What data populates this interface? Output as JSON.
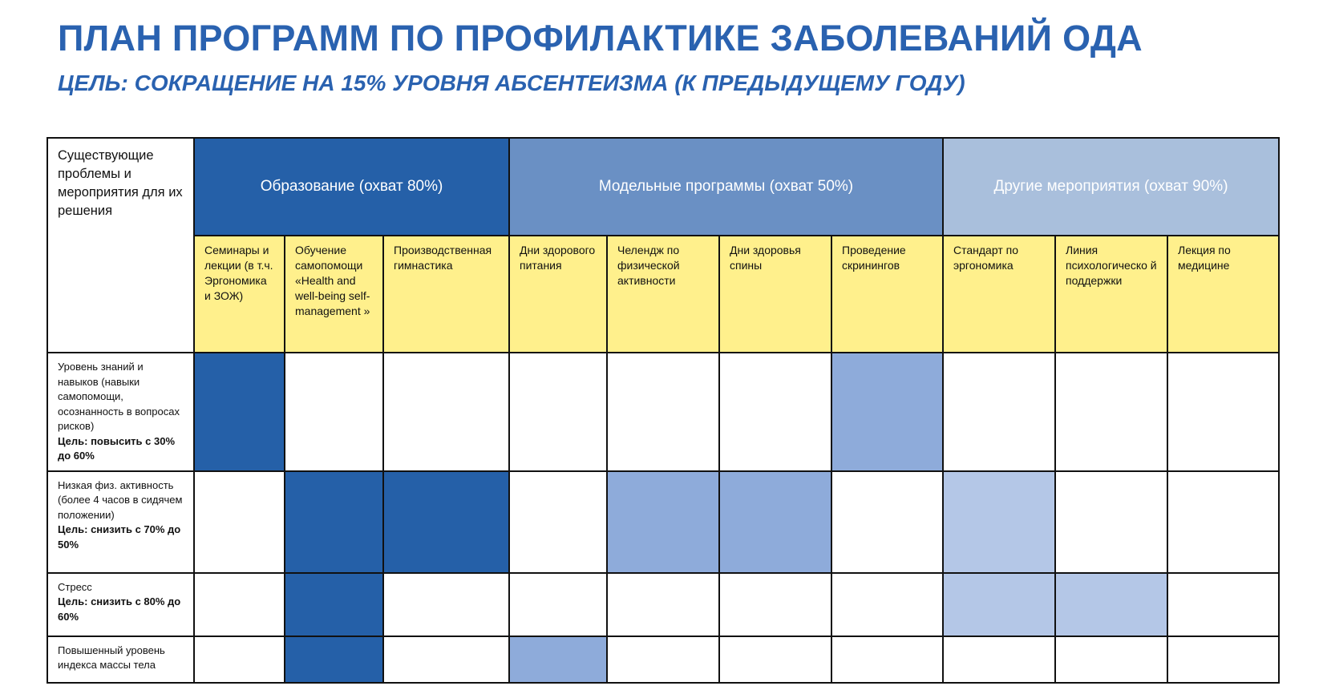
{
  "title": "ПЛАН ПРОГРАММ ПО ПРОФИЛАКТИКЕ ЗАБОЛЕВАНИЙ ОДА",
  "subtitle": "ЦЕЛЬ: СОКРАЩЕНИЕ НА  15% УРОВНЯ АБСЕНТЕИЗМА (К ПРЕДЫДУЩЕМУ ГОДУ)",
  "colors": {
    "title": "#2a62b0",
    "dark": "#2560a8",
    "medium": "#8eabda",
    "light": "#b4c7e7",
    "subheader": "#fff08c"
  },
  "table": {
    "corner": "Существующие проблемы и мероприятия для их решения",
    "groups": [
      {
        "label": "Образование (охват 80%)",
        "span": 3
      },
      {
        "label": "Модельные программы (охват 50%)",
        "span": 4
      },
      {
        "label": "Другие мероприятия (охват 90%)",
        "span": 3
      }
    ],
    "columns": [
      "Семинары и лекции  (в т.ч. Эргономика и ЗОЖ)",
      "Обучение самопомощи «Health and well-being self-management »",
      "Производственная гимнастика",
      "Дни здорового питания",
      "Челендж по физической активности",
      "Дни здоровья спины",
      "Проведение скринингов",
      "Стандарт по эргономика",
      "Линия психологическо й поддержки",
      "Лекция по медицине"
    ],
    "rows": [
      {
        "label": "Уровень знаний  и навыков  (навыки самопомощи, осознанность в вопросах рисков)",
        "goal": "Цель: повысить с 30% до 60%",
        "cells": [
          "dark",
          "none",
          "none",
          "none",
          "none",
          "none",
          "med",
          "none",
          "none",
          "none"
        ]
      },
      {
        "label": "Низкая физ. активность (более 4 часов в сидячем положении)",
        "goal": "Цель: снизить с 70% до 50%",
        "cells": [
          "none",
          "dark",
          "dark",
          "none",
          "med",
          "med",
          "none",
          "light",
          "none",
          "none"
        ]
      },
      {
        "label": "Стресс",
        "goal": "Цель: снизить с 80% до 60%",
        "cells": [
          "none",
          "dark",
          "none",
          "none",
          "none",
          "none",
          "none",
          "light",
          "light",
          "none"
        ]
      },
      {
        "label": "Повышенный уровень индекса массы тела",
        "goal": "",
        "cells": [
          "none",
          "dark",
          "none",
          "med",
          "none",
          "none",
          "none",
          "none",
          "none",
          "none"
        ]
      }
    ]
  }
}
